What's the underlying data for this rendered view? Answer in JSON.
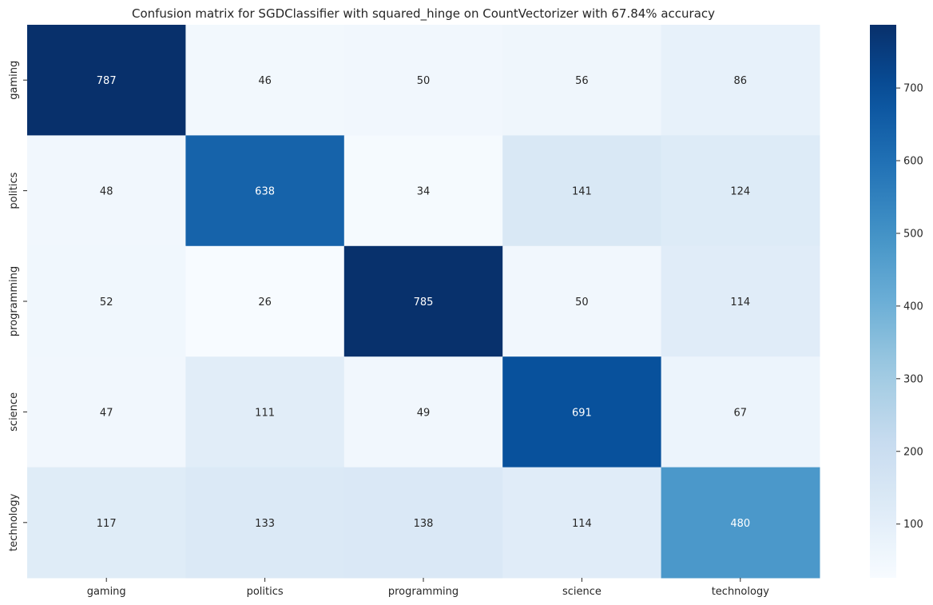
{
  "chart_data": {
    "type": "heatmap",
    "title": "Confusion matrix for SGDClassifier with squared_hinge on CountVectorizer with 67.84% accuracy",
    "row_labels": [
      "gaming",
      "politics",
      "programming",
      "science",
      "technology"
    ],
    "col_labels": [
      "gaming",
      "politics",
      "programming",
      "science",
      "technology"
    ],
    "values": [
      [
        787,
        46,
        50,
        56,
        86
      ],
      [
        48,
        638,
        34,
        141,
        124
      ],
      [
        52,
        26,
        785,
        50,
        114
      ],
      [
        47,
        111,
        49,
        691,
        67
      ],
      [
        117,
        133,
        138,
        114,
        480
      ]
    ],
    "colormap": "Blues",
    "vmin": 26,
    "vmax": 787,
    "colorbar_ticks": [
      100,
      200,
      300,
      400,
      500,
      600,
      700
    ],
    "annotations": true
  }
}
